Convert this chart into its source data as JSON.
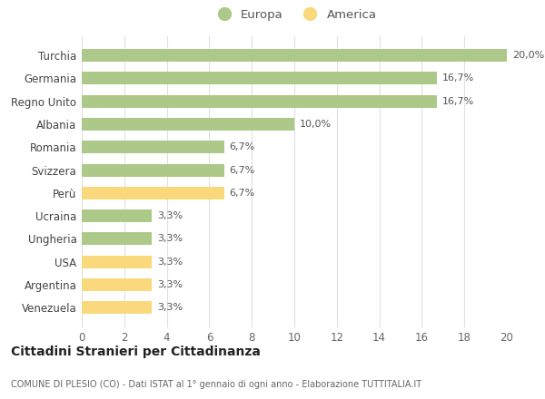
{
  "categories": [
    "Venezuela",
    "Argentina",
    "USA",
    "Ungheria",
    "Ucraina",
    "Perù",
    "Svizzera",
    "Romania",
    "Albania",
    "Regno Unito",
    "Germania",
    "Turchia"
  ],
  "values": [
    3.3,
    3.3,
    3.3,
    3.3,
    3.3,
    6.7,
    6.7,
    6.7,
    10.0,
    16.7,
    16.7,
    20.0
  ],
  "colors": [
    "#f9d97c",
    "#f9d97c",
    "#f9d97c",
    "#adc98a",
    "#adc98a",
    "#f9d97c",
    "#adc98a",
    "#adc98a",
    "#adc98a",
    "#adc98a",
    "#adc98a",
    "#adc98a"
  ],
  "labels": [
    "3,3%",
    "3,3%",
    "3,3%",
    "3,3%",
    "3,3%",
    "6,7%",
    "6,7%",
    "6,7%",
    "10,0%",
    "16,7%",
    "16,7%",
    "20,0%"
  ],
  "europa_color": "#adc98a",
  "america_color": "#f9d97c",
  "title": "Cittadini Stranieri per Cittadinanza",
  "subtitle": "COMUNE DI PLESIO (CO) - Dati ISTAT al 1° gennaio di ogni anno - Elaborazione TUTTITALIA.IT",
  "xlim": [
    0,
    20
  ],
  "xticks": [
    0,
    2,
    4,
    6,
    8,
    10,
    12,
    14,
    16,
    18,
    20
  ],
  "background_color": "#ffffff",
  "grid_color": "#e0e0e0"
}
